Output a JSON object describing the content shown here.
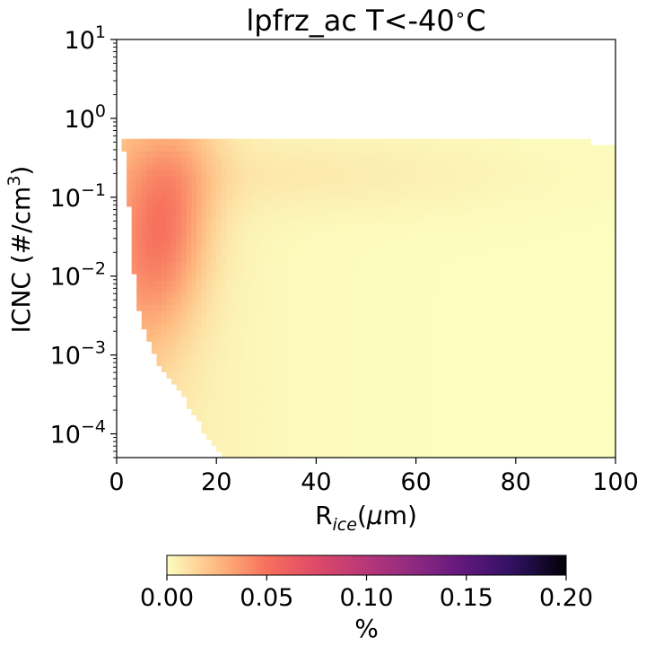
{
  "chart_data": {
    "type": "heatmap",
    "title": "lpfrz_ac T<-40$^\\circ$C",
    "xlabel": "R$_{ice}$($\\mu$m)",
    "ylabel": "ICNC (#/cm$^3$)",
    "xlim": [
      0,
      100
    ],
    "ylim": [
      5e-05,
      10
    ],
    "yscale": "log",
    "xticks": [
      "0",
      "20",
      "40",
      "60",
      "80",
      "100"
    ],
    "yticks": [
      {
        "base": "10",
        "exp": "1"
      },
      {
        "base": "10",
        "exp": "0"
      },
      {
        "base": "10",
        "exp": "−1"
      },
      {
        "base": "10",
        "exp": "−2"
      },
      {
        "base": "10",
        "exp": "−3"
      },
      {
        "base": "10",
        "exp": "−4"
      }
    ],
    "colorbar": {
      "label": "%",
      "range": [
        0,
        0.2
      ],
      "colormap": "magma_r",
      "ticks": [
        "0.00",
        "0.05",
        "0.10",
        "0.15",
        "0.20"
      ]
    },
    "grid": false,
    "data_extent": {
      "max_icnc": 0.55,
      "boundary_lower_icnc_by_radius": [
        [
          1,
          0.55
        ],
        [
          2,
          0.3
        ],
        [
          3,
          0.02
        ],
        [
          4,
          0.005
        ],
        [
          5,
          0.0026
        ],
        [
          6,
          0.0018
        ],
        [
          7,
          0.0012
        ],
        [
          8,
          0.00085
        ],
        [
          10,
          0.0006
        ],
        [
          12,
          0.0004
        ],
        [
          14,
          0.00025
        ],
        [
          16,
          0.00015
        ],
        [
          18,
          0.0001
        ],
        [
          20,
          7e-05
        ],
        [
          22,
          5e-05
        ]
      ],
      "peak_region": {
        "radius": [
          3,
          12
        ],
        "icnc": [
          0.003,
          0.55
        ],
        "value": 0.04
      }
    }
  }
}
